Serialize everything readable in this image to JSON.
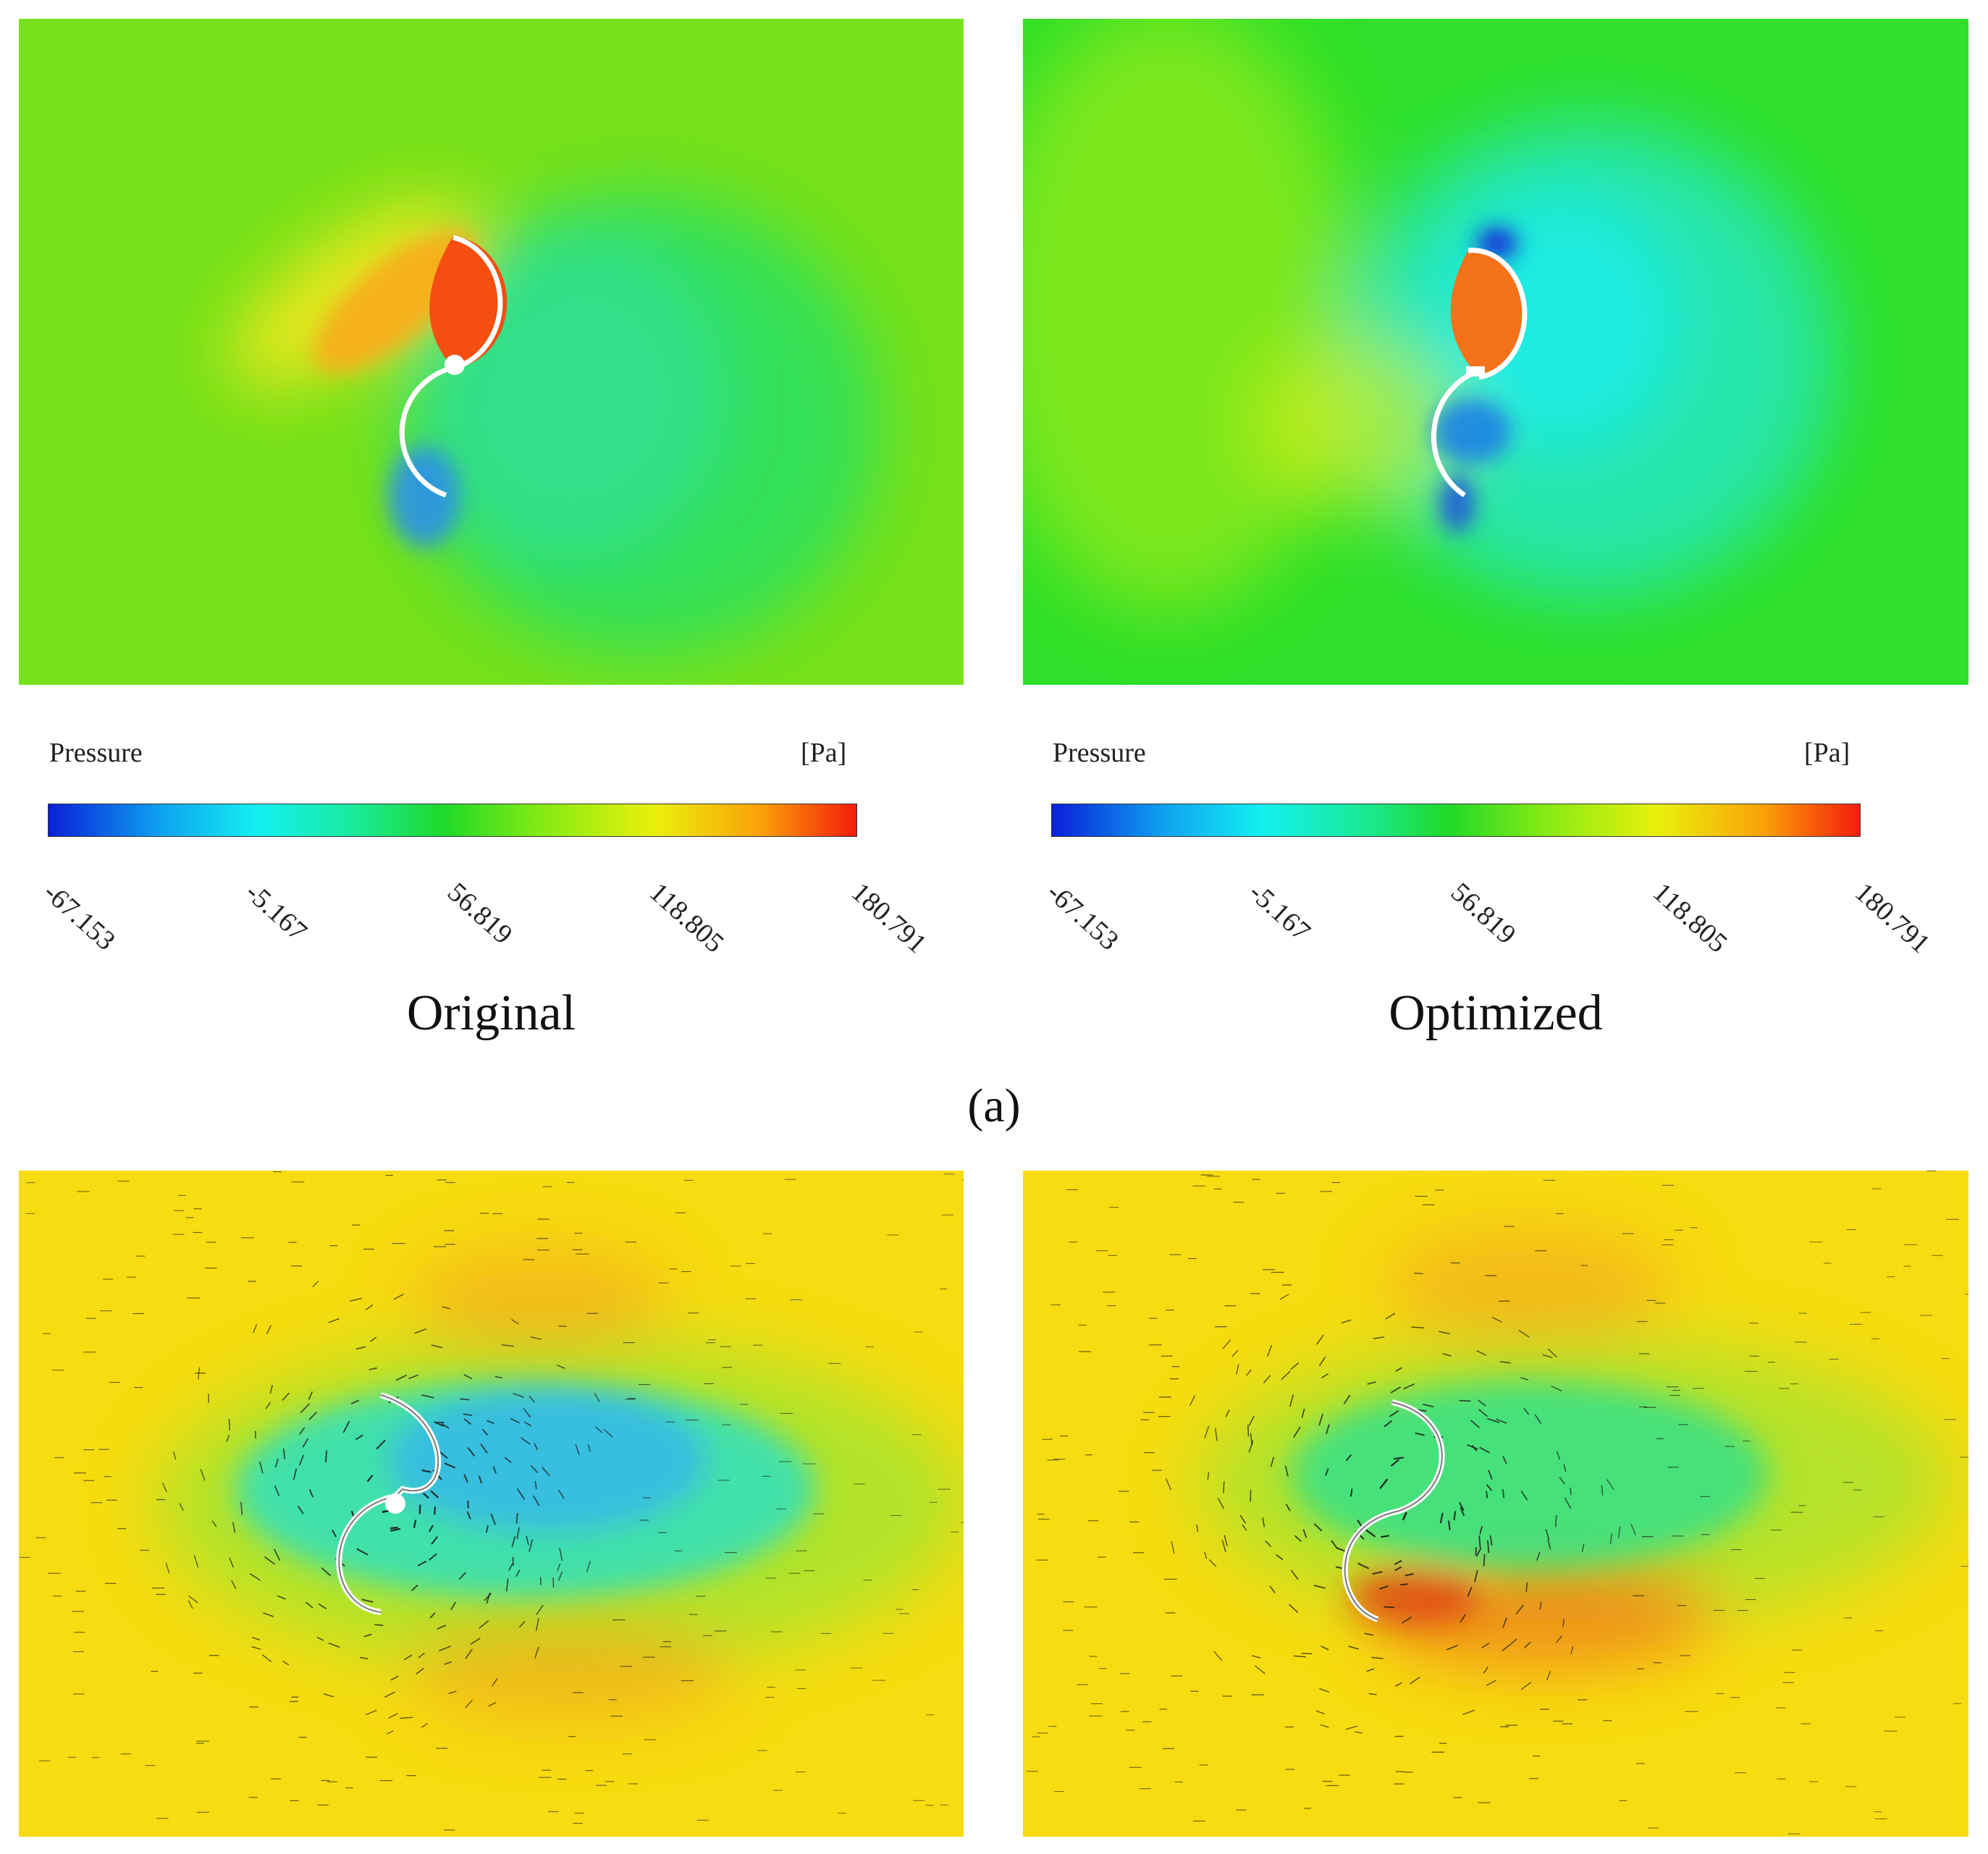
{
  "figure": {
    "subfigure_label": "(a)",
    "panels": [
      {
        "id": "original",
        "caption": "Original",
        "colorbar_title": "Pressure",
        "colorbar_unit": "[Pa]"
      },
      {
        "id": "optimized",
        "caption": "Optimized",
        "colorbar_title": "Pressure",
        "colorbar_unit": "[Pa]"
      }
    ],
    "colorbar_ticks": [
      "-67.153",
      "-5.167",
      "56.819",
      "118.805",
      "180.791"
    ],
    "colorbar_colors": [
      "#0b1fd8",
      "#13f0f0",
      "#20d92a",
      "#e9f00c",
      "#f41c0c"
    ]
  }
}
